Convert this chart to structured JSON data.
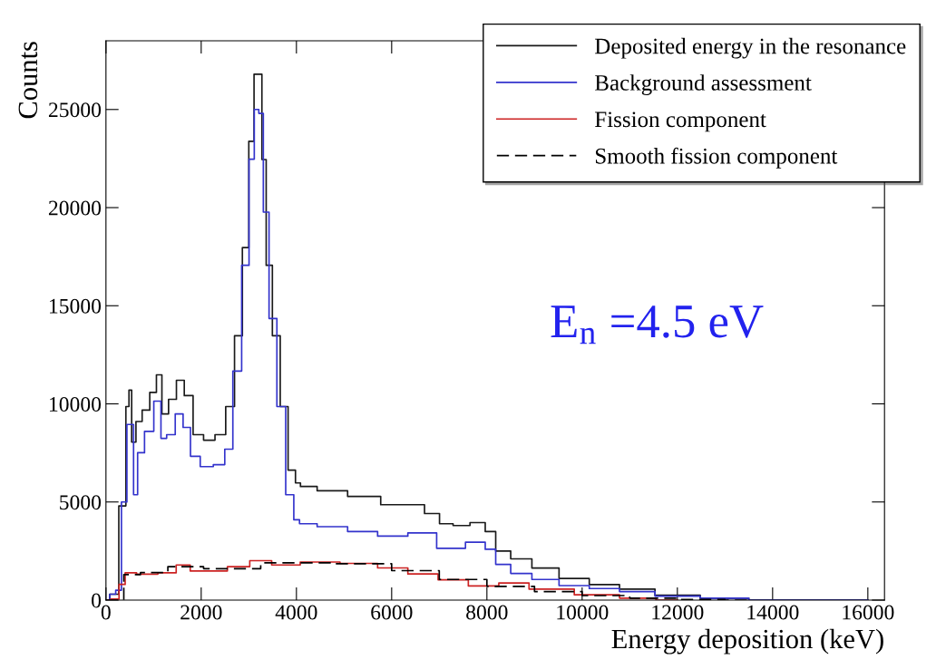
{
  "chart_data": {
    "type": "step",
    "xlabel": "Energy deposition (keV)",
    "ylabel": "Counts",
    "xlim": [
      0,
      16350
    ],
    "ylim": [
      0,
      28500
    ],
    "xticks": [
      0,
      2000,
      4000,
      6000,
      8000,
      10000,
      12000,
      14000,
      16000
    ],
    "yticks": [
      0,
      5000,
      10000,
      15000,
      20000,
      25000
    ],
    "grid": false,
    "legend": "top right",
    "marker": "none",
    "annotations": [
      "E$_{n}$ =4.5 eV"
    ],
    "series": [
      {
        "name": "Deposited energy in the resonance",
        "color": "#1a1a1a",
        "line_style": "solid",
        "x": [
          0,
          160,
          380,
          457,
          510,
          570,
          690,
          830,
          1010,
          1110,
          1240,
          1390,
          1570,
          1720,
          1940,
          2160,
          2420,
          2610,
          2790,
          2940,
          3060,
          3160,
          3240,
          3310,
          3420,
          3570,
          3750,
          3900,
          4060,
          4110,
          4760,
          5390,
          6150,
          6530,
          6850,
          7160,
          7420,
          7870,
          8060,
          8310,
          8690,
          9200,
          9830,
          10470,
          11100,
          11960,
          13000,
          14000,
          15000,
          16000
        ],
        "values": [
          0,
          300,
          4800,
          9860,
          10700,
          8050,
          9100,
          9680,
          10580,
          11480,
          9490,
          10230,
          11200,
          10420,
          8430,
          8150,
          8430,
          9860,
          13470,
          17960,
          23380,
          26800,
          26800,
          22450,
          17060,
          13470,
          9860,
          6620,
          5970,
          5790,
          5570,
          5280,
          4860,
          4860,
          4410,
          3890,
          3800,
          3950,
          3490,
          2500,
          2100,
          1630,
          1100,
          790,
          560,
          250,
          100,
          0,
          0,
          0
        ]
      },
      {
        "name": "Background assessment",
        "color": "#3333cc",
        "line_style": "solid",
        "x": [
          0,
          160,
          250,
          400,
          480,
          550,
          610,
          720,
          900,
          1110,
          1200,
          1350,
          1560,
          1680,
          1870,
          2090,
          2420,
          2570,
          2760,
          2940,
          3070,
          3160,
          3260,
          3350,
          3500,
          3680,
          3870,
          4020,
          4110,
          4760,
          5390,
          6020,
          6660,
          7230,
          7870,
          8060,
          8310,
          8690,
          9200,
          9830,
          10470,
          11100,
          11960,
          13000,
          14000,
          15000,
          16000
        ],
        "values": [
          0,
          300,
          500,
          5000,
          8950,
          8950,
          5370,
          7510,
          8600,
          10140,
          8240,
          8430,
          9490,
          8800,
          7330,
          6800,
          6900,
          7690,
          11670,
          17060,
          22470,
          25000,
          24800,
          19770,
          14350,
          9860,
          5370,
          4090,
          3890,
          3740,
          3490,
          3260,
          3420,
          2640,
          2950,
          2590,
          1820,
          1360,
          1050,
          740,
          590,
          430,
          200,
          100,
          0,
          0,
          0
        ]
      },
      {
        "name": "Fission component",
        "color": "#cc2222",
        "line_style": "solid",
        "x": [
          0,
          200,
          350,
          457,
          830,
          1350,
          1600,
          1940,
          2300,
          2800,
          3240,
          3720,
          4440,
          5390,
          6020,
          6660,
          7290,
          7930,
          8570,
          9200,
          10470,
          11100,
          12000
        ],
        "values": [
          0,
          50,
          800,
          1390,
          1320,
          1390,
          1790,
          1480,
          1480,
          1700,
          2010,
          1790,
          1940,
          1870,
          1640,
          1330,
          1030,
          720,
          870,
          560,
          270,
          100,
          0
        ]
      },
      {
        "name": "Smooth fission component",
        "color": "#000000",
        "line_style": "dashed",
        "x": [
          0,
          300,
          450,
          1000,
          1600,
          2500,
          4000,
          5500,
          6500,
          7500,
          8500,
          9500,
          10500,
          11500,
          12500,
          13500
        ],
        "values": [
          0,
          0,
          1300,
          1400,
          1700,
          1600,
          1900,
          1850,
          1500,
          1050,
          700,
          430,
          230,
          100,
          30,
          0
        ]
      }
    ]
  }
}
